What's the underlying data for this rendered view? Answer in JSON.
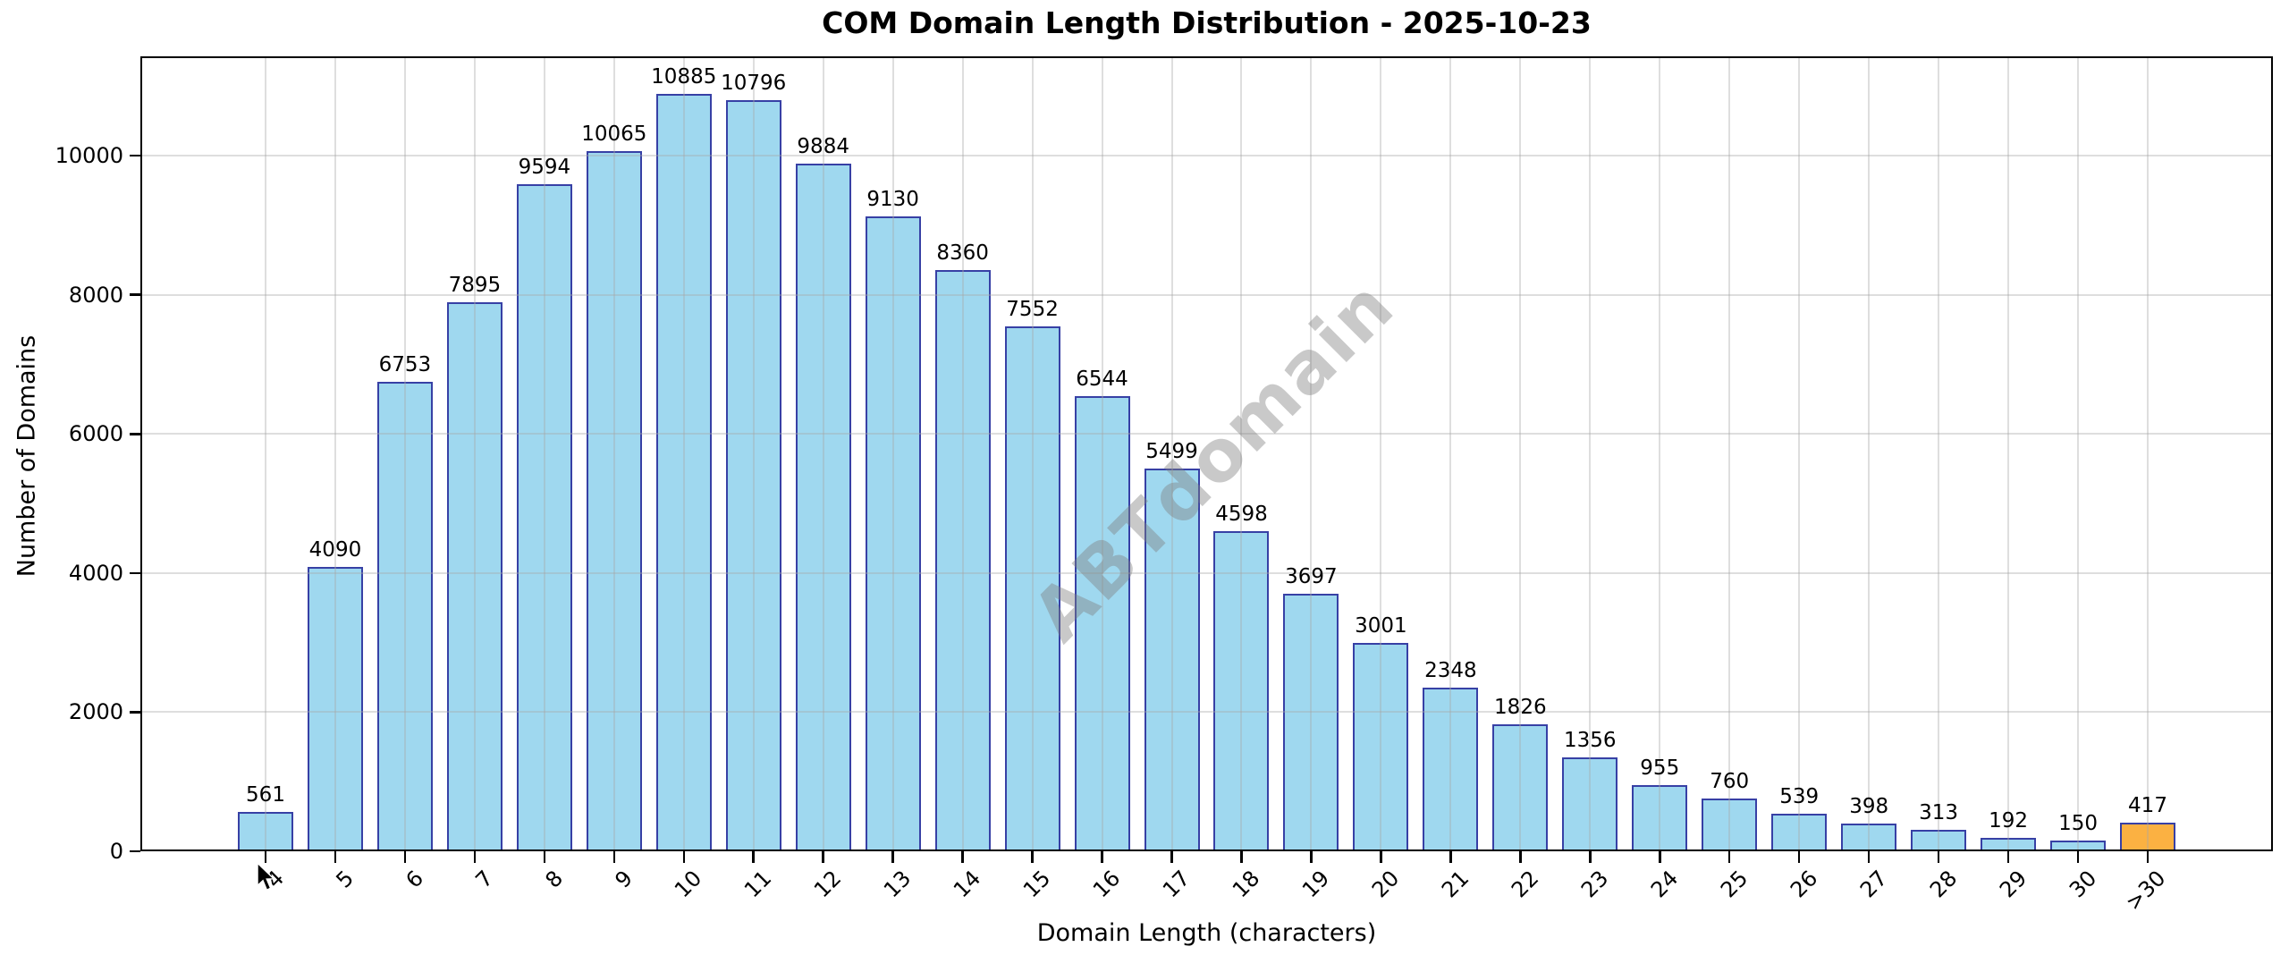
{
  "title": "COM Domain Length Distribution - 2025-10-23",
  "watermark": "ABTdomain",
  "chart_data": {
    "type": "bar",
    "title": "COM Domain Length Distribution - 2025-10-23",
    "xlabel": "Domain Length (characters)",
    "ylabel": "Number of Domains",
    "categories": [
      "4",
      "5",
      "6",
      "7",
      "8",
      "9",
      "10",
      "11",
      "12",
      "13",
      "14",
      "15",
      "16",
      "17",
      "18",
      "19",
      "20",
      "21",
      "22",
      "23",
      "24",
      "25",
      "26",
      "27",
      "28",
      "29",
      "30",
      ">30"
    ],
    "values": [
      561,
      4090,
      6753,
      7895,
      9594,
      10065,
      10885,
      10796,
      9884,
      9130,
      8360,
      7552,
      6544,
      5499,
      4598,
      3697,
      3001,
      2348,
      1826,
      1356,
      955,
      760,
      539,
      398,
      313,
      192,
      150,
      417
    ],
    "bar_value_labels": [
      "561",
      "4090",
      "6753",
      "7895",
      "9594",
      "10065",
      "10885",
      "10796",
      "9884",
      "9130",
      "8360",
      "7552",
      "6544",
      "5499",
      "4598",
      "3697",
      "3001",
      "2348",
      "1826",
      "1356",
      "955",
      "760",
      "539",
      "398",
      "313",
      "192",
      "150",
      "417"
    ],
    "yticks": [
      0,
      2000,
      4000,
      6000,
      8000,
      10000
    ],
    "ylim": [
      0,
      11429
    ],
    "grid": true,
    "legend": "none",
    "bar_color": "#9FD8EF",
    "bar_edge_color": "#3740A5",
    "highlight_index": 27,
    "highlight_color": "#FBB142",
    "highlight_edge_color": "#3740A5"
  }
}
